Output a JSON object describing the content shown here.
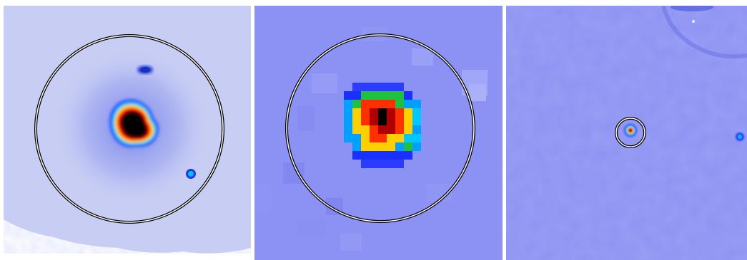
{
  "figure": {
    "panels": [
      {
        "id": "panel-1",
        "kind": "x-ray-image",
        "colormap": [
          "#000000",
          "#c00000",
          "#ff0000",
          "#ffd200",
          "#00c8ff",
          "#2040ff",
          "#6a7cf0",
          "#c8ccf4"
        ]
      },
      {
        "id": "panel-2",
        "kind": "pixelated-source-map",
        "colormap": [
          "#000000",
          "#b00000",
          "#ff3000",
          "#ffd000",
          "#20c040",
          "#00a0ff",
          "#1030ff",
          "#8c92f4"
        ]
      },
      {
        "id": "panel-3",
        "kind": "wide-field-image",
        "colormap": [
          "#000000",
          "#ff0000",
          "#ffd000",
          "#00c0ff",
          "#2040ff",
          "#8c92f0"
        ]
      }
    ]
  }
}
